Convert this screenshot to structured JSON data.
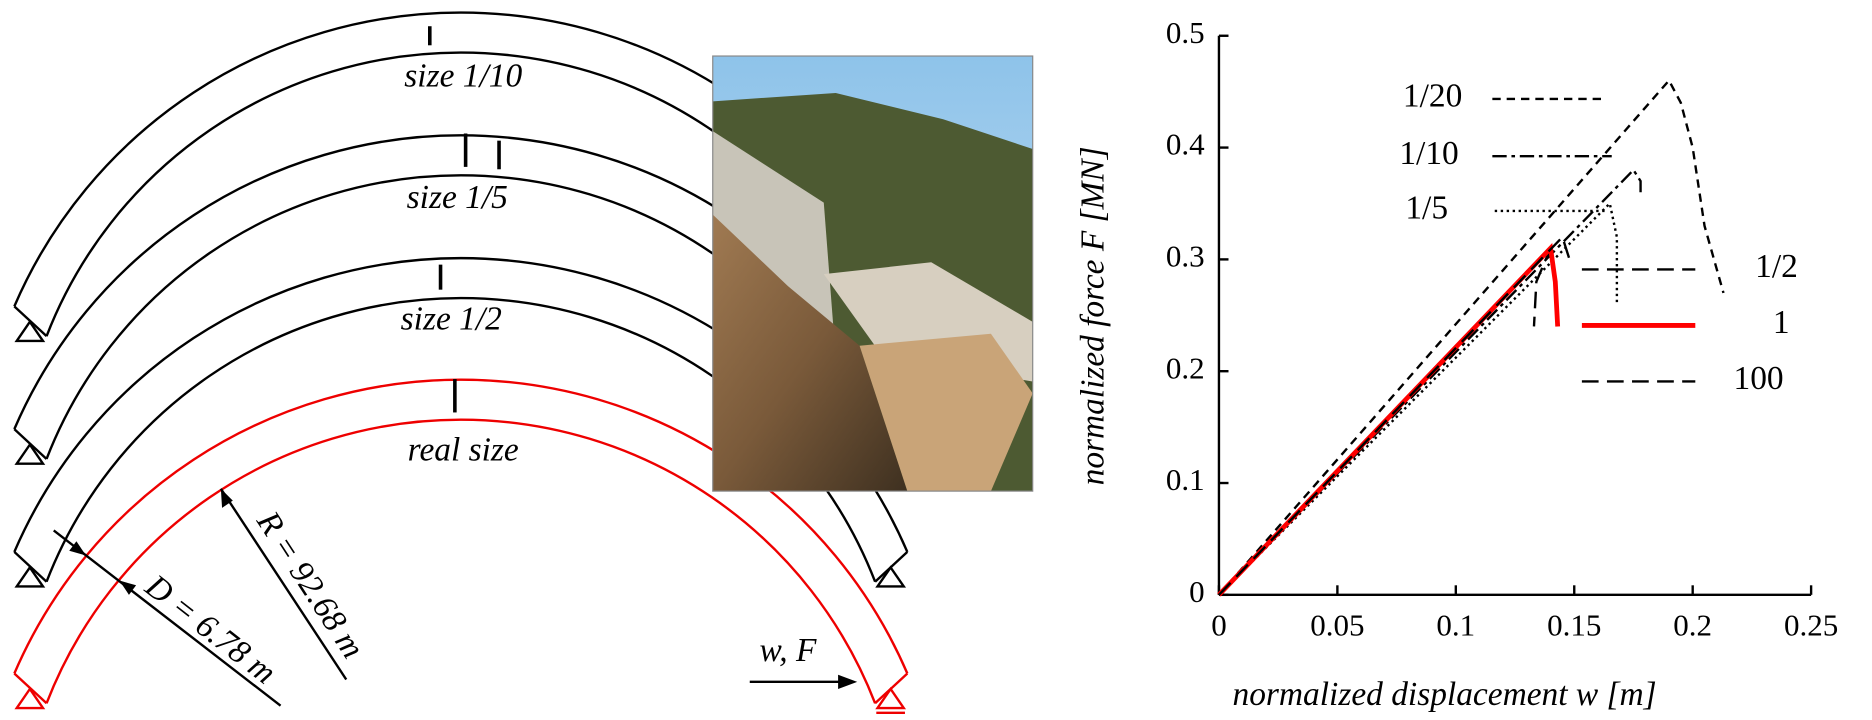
{
  "diagram": {
    "arch_labels": [
      "size 1/10",
      "size 1/5",
      "size 1/2",
      "real size"
    ],
    "radius_label": "R = 92.68 m",
    "depth_label": "D = 6.78 m",
    "load_label": "w, F"
  },
  "chart_data": {
    "type": "line",
    "x_label": "normalized displacement w [m]",
    "y_label": "normalized force F  [MN]",
    "xlim": [
      0,
      0.25
    ],
    "xticks": [
      0,
      0.05,
      0.1,
      0.15,
      0.2,
      0.25
    ],
    "ylim": [
      0,
      0.5
    ],
    "yticks": [
      0,
      0.1,
      0.2,
      0.3,
      0.4,
      0.5
    ],
    "series": [
      {
        "name": "1/20",
        "color": "#000000",
        "style": "dash",
        "x": [
          0,
          0.19,
          0.195,
          0.2,
          0.205,
          0.213
        ],
        "values": [
          0,
          0.46,
          0.44,
          0.4,
          0.33,
          0.27
        ]
      },
      {
        "name": "1/10",
        "color": "#000000",
        "style": "dashdot",
        "x": [
          0,
          0.175,
          0.178,
          0.178
        ],
        "values": [
          0,
          0.38,
          0.37,
          0.36
        ]
      },
      {
        "name": "1/5",
        "color": "#000000",
        "style": "dot",
        "x": [
          0,
          0.165,
          0.168,
          0.168
        ],
        "values": [
          0,
          0.35,
          0.32,
          0.26
        ]
      },
      {
        "name": "1/2",
        "color": "#000000",
        "style": "longdash",
        "x": [
          0,
          0.14,
          0.134,
          0.133
        ],
        "values": [
          0,
          0.31,
          0.28,
          0.24
        ]
      },
      {
        "name": "1",
        "color": "#ff0000",
        "style": "solid",
        "x": [
          0,
          0.14,
          0.142,
          0.143
        ],
        "values": [
          0,
          0.31,
          0.28,
          0.24
        ]
      },
      {
        "name": "100",
        "color": "#000000",
        "style": "longdash",
        "x": [
          0,
          0.145,
          0.148
        ],
        "values": [
          0,
          0.32,
          0.3
        ]
      }
    ]
  }
}
